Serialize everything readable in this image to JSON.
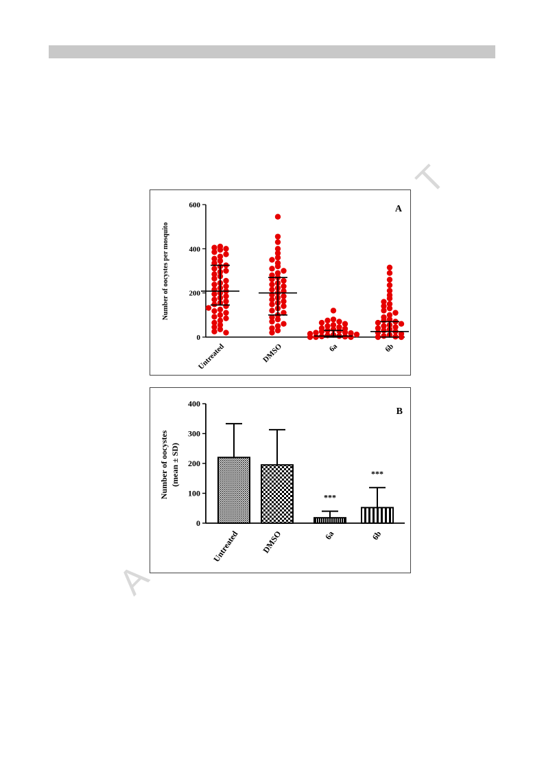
{
  "chart_data": [
    {
      "type": "scatter",
      "panel_label": "A",
      "ylabel": "Number of oocystes per mosquito",
      "ylim": [
        0,
        600
      ],
      "yticks": [
        0,
        200,
        400,
        600
      ],
      "categories": [
        "Untreated",
        "DMSO",
        "6a",
        "6b"
      ],
      "point_color": "#e60000",
      "summary": [
        {
          "category": "Untreated",
          "median": 208,
          "lower": 145,
          "upper": 325
        },
        {
          "category": "DMSO",
          "median": 200,
          "lower": 100,
          "upper": 270
        },
        {
          "category": "6a",
          "median": 5,
          "lower": 0,
          "upper": 30
        },
        {
          "category": "6b",
          "median": 25,
          "lower": 0,
          "upper": 70
        }
      ],
      "points": [
        {
          "category": "Untreated",
          "values": [
            410,
            405,
            400,
            395,
            385,
            375,
            365,
            355,
            345,
            335,
            325,
            320,
            310,
            300,
            295,
            285,
            275,
            265,
            255,
            245,
            238,
            230,
            222,
            215,
            208,
            200,
            195,
            185,
            178,
            170,
            162,
            155,
            148,
            140,
            132,
            125,
            118,
            110,
            100,
            92,
            85,
            75,
            65,
            55,
            45,
            35,
            25,
            20
          ]
        },
        {
          "category": "DMSO",
          "values": [
            545,
            455,
            430,
            400,
            380,
            360,
            350,
            335,
            320,
            310,
            300,
            290,
            280,
            270,
            262,
            255,
            245,
            238,
            230,
            222,
            215,
            208,
            200,
            192,
            185,
            178,
            170,
            162,
            155,
            148,
            140,
            130,
            120,
            110,
            100,
            90,
            80,
            70,
            60,
            50,
            40,
            30,
            20
          ]
        },
        {
          "category": "6a",
          "values": [
            120,
            80,
            75,
            70,
            65,
            60,
            55,
            50,
            45,
            40,
            38,
            35,
            30,
            28,
            25,
            22,
            20,
            18,
            15,
            12,
            10,
            8,
            5,
            3,
            2,
            0,
            0,
            0
          ]
        },
        {
          "category": "6b",
          "values": [
            315,
            290,
            260,
            235,
            210,
            190,
            175,
            160,
            150,
            140,
            130,
            120,
            110,
            100,
            90,
            80,
            75,
            70,
            65,
            60,
            55,
            50,
            45,
            40,
            35,
            30,
            25,
            20,
            15,
            10,
            5,
            2,
            0,
            0
          ]
        }
      ]
    },
    {
      "type": "bar",
      "panel_label": "B",
      "ylabel_line1": "Number of oocystes",
      "ylabel_line2": "(mean ± SD)",
      "ylim": [
        0,
        400
      ],
      "yticks": [
        0,
        100,
        200,
        300,
        400
      ],
      "categories": [
        "Untreated",
        "DMSO",
        "6a",
        "6b"
      ],
      "values": [
        220,
        195,
        18,
        52
      ],
      "errors": [
        113,
        118,
        22,
        67
      ],
      "annotations": [
        "",
        "",
        "***",
        "***"
      ],
      "patterns": [
        "fine-dots",
        "checker",
        "dense-stripes",
        "vertical-stripes"
      ]
    }
  ]
}
